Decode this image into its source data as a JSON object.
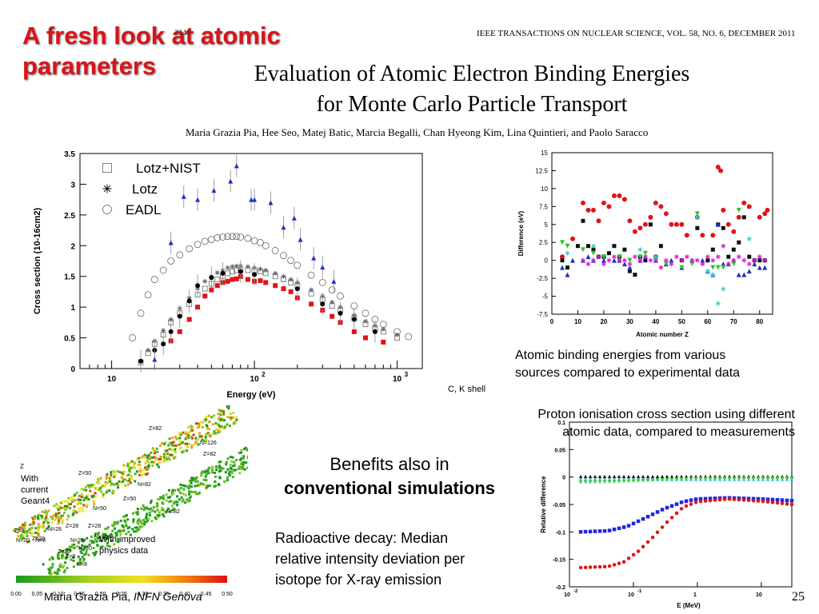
{
  "slide": {
    "title_line1": "A fresh look at atomic",
    "title_line2": "parameters",
    "page_number": "25",
    "footer_author": "Maria Grazia Pia,",
    "footer_affil": "INFN Genova"
  },
  "paper": {
    "page_ref": "3248",
    "journal": "IEEE TRANSACTIONS ON NUCLEAR SCIENCE, VOL. 58, NO. 6, DECEMBER 2011",
    "title_line1": "Evaluation of Atomic Electron Binding Energies",
    "title_line2": "for Monte Carlo Particle Transport",
    "authors": "Maria Grazia Pia, Hee Seo, Matej Batic, Marcia Begalli, Chan Hyeong Kim, Lina Quintieri, and Paolo Saracco"
  },
  "captions": {
    "binding_line1": "Atomic binding energies from various",
    "binding_line2": "sources compared to experimental data",
    "ck_shell": "C, K shell",
    "proton_line1": "Proton ionisation cross section using different",
    "proton_line2": "atomic data, compared to measurements",
    "benefits_line1": "Benefits also in",
    "benefits_line2": "conventional simulations",
    "radio_line1": "Radioactive decay: Median",
    "radio_line2": "relative intensity deviation per",
    "radio_line3": "isotope for X-ray emission",
    "with_current_1": "With",
    "with_current_2": "current",
    "with_current_3": "Geant4",
    "with_improved_1": "With improved",
    "with_improved_2": "physics data"
  },
  "chart_data": [
    {
      "type": "scatter",
      "xlabel": "Energy (eV)",
      "ylabel": "Cross section (10-16cm2)",
      "xscale": "log",
      "xlim": [
        6,
        1500
      ],
      "ylim": [
        0,
        3.5
      ],
      "yticks": [
        "0",
        "0.5",
        "1",
        "1.5",
        "2",
        "2.5",
        "3",
        "3.5"
      ],
      "xticks": [
        {
          "v": 10,
          "label": "10"
        },
        {
          "v": 100,
          "label": "10",
          "sup": "2"
        },
        {
          "v": 1000,
          "label": "10",
          "sup": "3"
        }
      ],
      "legend": [
        "Lotz+NIST",
        "Lotz",
        "EADL"
      ],
      "legend_position": "top-left",
      "series": [
        {
          "name": "Lotz+NIST",
          "marker": "open-square",
          "x": [
            16,
            18,
            20,
            23,
            26,
            30,
            35,
            40,
            45,
            50,
            55,
            60,
            65,
            70,
            75,
            80,
            90,
            100,
            110,
            120,
            140,
            160,
            180,
            200,
            250,
            300,
            350,
            400,
            500,
            600,
            700,
            800,
            1000
          ],
          "y": [
            0.1,
            0.25,
            0.4,
            0.55,
            0.75,
            0.9,
            1.05,
            1.2,
            1.3,
            1.38,
            1.45,
            1.5,
            1.55,
            1.58,
            1.6,
            1.6,
            1.6,
            1.6,
            1.58,
            1.55,
            1.5,
            1.45,
            1.4,
            1.35,
            1.22,
            1.12,
            1.02,
            0.95,
            0.82,
            0.72,
            0.65,
            0.6,
            0.5
          ]
        },
        {
          "name": "Lotz",
          "marker": "star",
          "x": [
            16,
            18,
            20,
            23,
            26,
            30,
            35,
            40,
            45,
            50,
            55,
            60,
            65,
            70,
            75,
            80,
            90,
            100,
            110,
            120,
            140,
            160,
            180,
            200,
            250,
            300,
            350,
            400,
            500,
            600,
            700,
            800,
            1000
          ],
          "y": [
            0.12,
            0.3,
            0.45,
            0.62,
            0.8,
            0.98,
            1.15,
            1.3,
            1.42,
            1.5,
            1.56,
            1.6,
            1.64,
            1.66,
            1.67,
            1.67,
            1.66,
            1.64,
            1.62,
            1.6,
            1.55,
            1.5,
            1.45,
            1.4,
            1.28,
            1.18,
            1.08,
            1.0,
            0.87,
            0.77,
            0.7,
            0.64,
            0.55
          ]
        },
        {
          "name": "EADL",
          "marker": "open-circle",
          "x": [
            14,
            16,
            18,
            20,
            23,
            26,
            30,
            35,
            40,
            45,
            50,
            55,
            60,
            65,
            70,
            75,
            80,
            90,
            100,
            110,
            120,
            140,
            160,
            180,
            200,
            250,
            300,
            350,
            400,
            500,
            600,
            700,
            800,
            1000,
            1200
          ],
          "y": [
            0.5,
            0.9,
            1.2,
            1.45,
            1.6,
            1.75,
            1.85,
            1.95,
            2.02,
            2.07,
            2.1,
            2.13,
            2.14,
            2.15,
            2.15,
            2.15,
            2.14,
            2.12,
            2.08,
            2.05,
            2.0,
            1.92,
            1.84,
            1.76,
            1.68,
            1.52,
            1.4,
            1.28,
            1.18,
            1.02,
            0.9,
            0.8,
            0.72,
            0.6,
            0.52
          ]
        },
        {
          "name": "experiment-filled-square",
          "marker": "filled-square",
          "x": [
            26,
            30,
            35,
            40,
            45,
            50,
            55,
            60,
            65,
            70,
            75,
            80,
            90,
            100,
            110,
            120,
            140,
            160,
            180,
            200,
            250,
            300,
            350,
            400,
            500,
            600,
            800
          ],
          "y": [
            0.45,
            0.6,
            0.8,
            1.0,
            1.18,
            1.28,
            1.35,
            1.4,
            1.42,
            1.45,
            1.46,
            1.5,
            1.45,
            1.42,
            1.43,
            1.4,
            1.35,
            1.3,
            1.25,
            1.15,
            1.05,
            0.95,
            0.85,
            0.75,
            0.6,
            0.5,
            0.43
          ]
        },
        {
          "name": "experiment-filled-circle",
          "marker": "filled-circle",
          "x": [
            16,
            20,
            23,
            26,
            30,
            35,
            40,
            50,
            60,
            80,
            100,
            200,
            300,
            400,
            500,
            700
          ],
          "y": [
            0.12,
            0.3,
            0.4,
            0.6,
            0.85,
            1.1,
            1.35,
            1.48,
            1.55,
            1.58,
            1.53,
            1.3,
            1.05,
            0.9,
            0.8,
            0.6
          ]
        },
        {
          "name": "experiment-triangle",
          "marker": "filled-triangle",
          "x": [
            20,
            26,
            32,
            40,
            52,
            68,
            75,
            95,
            100,
            130,
            160,
            190,
            210,
            260,
            300,
            360
          ],
          "y": [
            0.15,
            2.05,
            2.8,
            2.75,
            2.9,
            3.05,
            3.3,
            2.75,
            2.75,
            2.7,
            2.3,
            2.45,
            2.1,
            1.8,
            1.65,
            1.42
          ]
        }
      ]
    },
    {
      "type": "scatter",
      "xlabel": "Atomic number Z",
      "ylabel": "Difference (eV)",
      "xlim": [
        0,
        85
      ],
      "ylim": [
        -7.5,
        15
      ],
      "xticks": [
        0,
        10,
        20,
        30,
        40,
        50,
        60,
        70,
        80
      ],
      "yticks": [
        -7.5,
        -5,
        -2.5,
        0,
        2.5,
        5,
        7.5,
        10,
        12.5,
        15
      ],
      "series": [
        {
          "name": "red-circle",
          "x": [
            4,
            8,
            12,
            14,
            16,
            18,
            20,
            22,
            24,
            26,
            28,
            30,
            32,
            34,
            36,
            38,
            40,
            42,
            44,
            46,
            48,
            50,
            52,
            56,
            58,
            62,
            64,
            65,
            66,
            68,
            70,
            72,
            74,
            76,
            80,
            82,
            83
          ],
          "y": [
            0.5,
            3,
            8,
            7,
            7,
            5.5,
            8,
            7.5,
            9,
            9,
            8.5,
            5.5,
            4,
            4.5,
            5,
            6,
            8,
            7.5,
            6.5,
            5,
            5,
            5,
            3.5,
            6,
            3.5,
            3.5,
            13,
            12.5,
            7,
            5,
            4,
            6,
            8,
            7.5,
            6,
            6.5,
            7
          ]
        },
        {
          "name": "black-square",
          "x": [
            4,
            6,
            10,
            12,
            14,
            16,
            18,
            20,
            22,
            24,
            26,
            28,
            30,
            32,
            34,
            36,
            38,
            40,
            42,
            50,
            56,
            60,
            62,
            64,
            66,
            68,
            70,
            72,
            74,
            76,
            78,
            80,
            82
          ],
          "y": [
            0,
            -1,
            2,
            5.5,
            2,
            1.5,
            0.5,
            0.5,
            1,
            2,
            0.5,
            1.5,
            -1.5,
            -2,
            0.5,
            0,
            5,
            0.5,
            2,
            0,
            4.5,
            0,
            1.5,
            5,
            4.5,
            0.5,
            1.5,
            2.5,
            6,
            0.5,
            0,
            0,
            0
          ]
        },
        {
          "name": "blue-triangle",
          "x": [
            4,
            6,
            8,
            12,
            14,
            16,
            20,
            24,
            26,
            28,
            30,
            34,
            36,
            40,
            44,
            46,
            50,
            54,
            58,
            60,
            62,
            64,
            66,
            68,
            70,
            72,
            74,
            76,
            78,
            80,
            82
          ],
          "y": [
            -1,
            -2,
            0,
            0,
            0.5,
            0,
            0,
            0,
            0,
            -0.5,
            -1,
            0,
            0.5,
            0,
            -0.5,
            0,
            -1,
            0,
            0,
            -1.5,
            -2,
            5,
            -0.5,
            -0.5,
            0,
            -2,
            -2,
            -1.5,
            -0.5,
            -1,
            -1
          ]
        },
        {
          "name": "green-triangle",
          "x": [
            4,
            6,
            12,
            16,
            20,
            26,
            30,
            34,
            36,
            40,
            44,
            50,
            54,
            56,
            62,
            64,
            66,
            70,
            72
          ],
          "y": [
            2.5,
            2,
            1.5,
            1,
            0.5,
            0.5,
            0,
            0.5,
            1,
            0,
            -0.5,
            -1,
            -0.5,
            6.5,
            -1,
            -1,
            -1,
            -0.5,
            7
          ]
        },
        {
          "name": "magenta-star",
          "x": [
            12,
            14,
            16,
            18,
            20,
            22,
            24,
            26,
            28,
            30,
            32,
            34,
            36,
            38,
            40,
            42,
            44,
            46,
            48,
            50,
            52,
            54,
            56,
            58,
            60,
            62,
            64,
            66,
            68,
            70,
            72,
            74,
            76,
            78,
            80,
            82
          ],
          "y": [
            0,
            -0.5,
            0,
            0.5,
            -0.5,
            0,
            0.5,
            0,
            0,
            -0.5,
            0.5,
            0,
            0.5,
            0,
            0,
            -1,
            0,
            -0.5,
            0.5,
            0,
            0.5,
            0,
            0,
            -0.5,
            0.5,
            0,
            0.5,
            2,
            -0.5,
            0,
            0.5,
            0,
            -0.5,
            0,
            0.5,
            0
          ]
        },
        {
          "name": "cyan-star",
          "x": [
            6,
            16,
            34,
            40,
            56,
            60,
            62,
            64,
            66,
            76
          ],
          "y": [
            1,
            2,
            1.5,
            0.5,
            6,
            -1.5,
            -2,
            -6,
            -4,
            3
          ]
        }
      ]
    },
    {
      "type": "scatter",
      "xlabel": "E (MeV)",
      "ylabel": "Relative difference",
      "xscale": "log",
      "xlim": [
        0.01,
        30
      ],
      "ylim": [
        -0.2,
        0.1
      ],
      "yticks": [
        -0.2,
        -0.15,
        -0.1,
        -0.05,
        0,
        0.05,
        0.1
      ],
      "xticks": [
        {
          "v": 0.01,
          "label": "10",
          "sup": "-2"
        },
        {
          "v": 0.1,
          "label": "10",
          "sup": "-1"
        },
        {
          "v": 1,
          "label": "1"
        },
        {
          "v": 10,
          "label": "10"
        }
      ],
      "series": [
        {
          "name": "black",
          "curve": "0:0.001",
          "points": [
            [
              0.015,
              0.001
            ],
            [
              30,
              0.001
            ]
          ]
        },
        {
          "name": "cyan",
          "points": [
            [
              0.015,
              -0.004
            ],
            [
              30,
              -0.004
            ]
          ]
        },
        {
          "name": "green",
          "points": [
            [
              0.015,
              -0.01
            ],
            [
              0.05,
              -0.009
            ],
            [
              0.3,
              -0.005
            ],
            [
              1,
              -0.003
            ],
            [
              30,
              -0.002
            ]
          ]
        },
        {
          "name": "blue",
          "points": [
            [
              0.015,
              -0.1
            ],
            [
              0.04,
              -0.098
            ],
            [
              0.08,
              -0.09
            ],
            [
              0.15,
              -0.075
            ],
            [
              0.3,
              -0.058
            ],
            [
              0.6,
              -0.045
            ],
            [
              1,
              -0.04
            ],
            [
              3,
              -0.038
            ],
            [
              10,
              -0.04
            ],
            [
              30,
              -0.043
            ]
          ]
        },
        {
          "name": "red",
          "points": [
            [
              0.015,
              -0.165
            ],
            [
              0.04,
              -0.163
            ],
            [
              0.07,
              -0.155
            ],
            [
              0.12,
              -0.135
            ],
            [
              0.2,
              -0.11
            ],
            [
              0.35,
              -0.08
            ],
            [
              0.6,
              -0.055
            ],
            [
              1,
              -0.045
            ],
            [
              3,
              -0.04
            ],
            [
              10,
              -0.044
            ],
            [
              30,
              -0.05
            ]
          ]
        }
      ]
    },
    {
      "type": "heatmap",
      "colorbar_ticks": [
        "0.00",
        "0.05",
        "0.10",
        "0.15",
        "0.20",
        "0.25",
        "0.30",
        "0.35",
        "0.40",
        "0.45",
        "0.50"
      ],
      "labels_top": [
        "Z=82",
        "N=126",
        "Z=82",
        "N=126"
      ],
      "labels_left": [
        "Z=50",
        "N=82",
        "Z=50",
        "N=82",
        "N=50",
        "Z=28",
        "N=28",
        "Z=20",
        "N=20",
        "N=8",
        "Z=8",
        "N=50",
        "Z=28",
        "N=28",
        "Z=20",
        "N=20",
        "Z=8",
        "N=8"
      ],
      "label_z": "Z"
    }
  ]
}
